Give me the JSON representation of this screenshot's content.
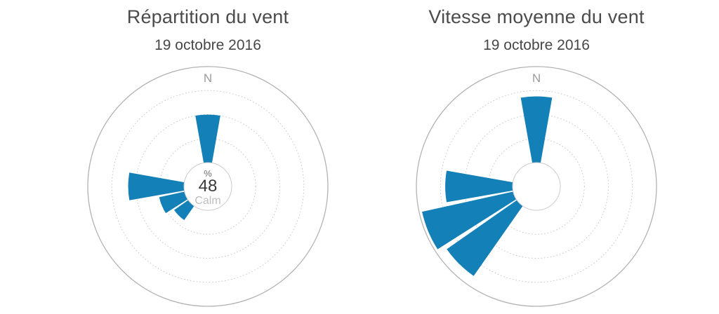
{
  "colors": {
    "sector_blue": "#1380b8",
    "outer_ring_gray": "#b2b2b2",
    "dotted_ring_gray": "#c4c4c4",
    "hole_stroke_gray": "#cbcbcb",
    "title_gray": "#4b4b4b"
  },
  "chart_data": [
    {
      "type": "windrose",
      "title": "Répartition du vent",
      "subtitle": "19 octobre 2016",
      "north_label": "N",
      "calm_percent": 48,
      "center_labels": {
        "unit": "%",
        "value": "48",
        "caption": "Calm"
      },
      "grid": {
        "dotted_rings": 3,
        "outer_solid_ring": true,
        "center_hole": true
      },
      "sector_width_deg": 22.5,
      "sectors": [
        {
          "direction": "N",
          "bearing_deg": 0,
          "radius_fraction": 0.5
        },
        {
          "direction": "W",
          "bearing_deg": 270,
          "radius_fraction": 0.58
        },
        {
          "direction": "WSW",
          "bearing_deg": 247.5,
          "radius_fraction": 0.27
        },
        {
          "direction": "SW",
          "bearing_deg": 225,
          "radius_fraction": 0.18
        }
      ]
    },
    {
      "type": "windrose",
      "title": "Vitesse moyenne du vent",
      "subtitle": "19 octobre 2016",
      "north_label": "N",
      "center_labels": null,
      "grid": {
        "dotted_rings": 3,
        "outer_solid_ring": true,
        "center_hole": true
      },
      "sector_width_deg": 22.5,
      "sectors": [
        {
          "direction": "N",
          "bearing_deg": 0,
          "radius_fraction": 0.69
        },
        {
          "direction": "W",
          "bearing_deg": 270,
          "radius_fraction": 0.7
        },
        {
          "direction": "WSW",
          "bearing_deg": 247.5,
          "radius_fraction": 0.97
        },
        {
          "direction": "SW",
          "bearing_deg": 225,
          "radius_fraction": 0.89
        }
      ]
    }
  ]
}
